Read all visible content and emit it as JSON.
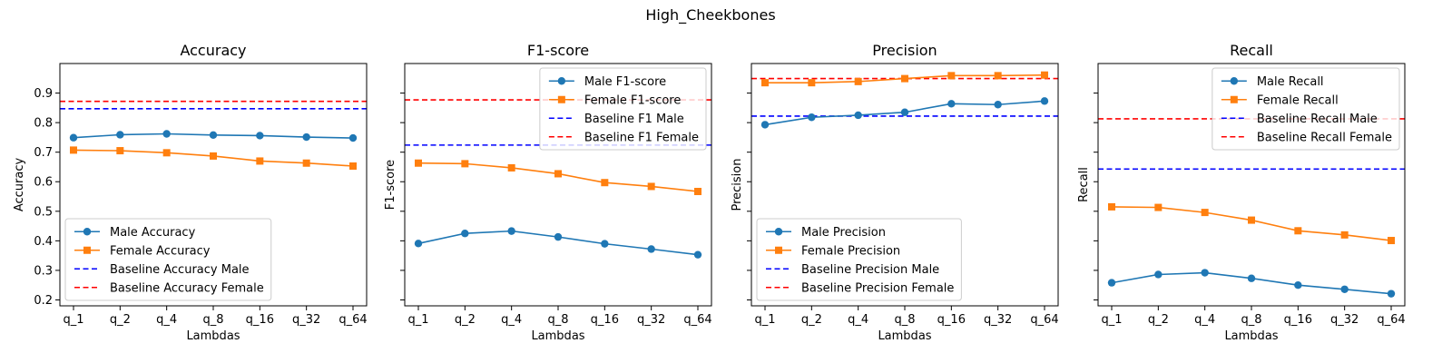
{
  "suptitle": "High_Cheekbones",
  "colors": {
    "male": "#1f77b4",
    "female": "#ff7f0e",
    "baseline_male": "#0000ff",
    "baseline_female": "#ff0000"
  },
  "chart_data": [
    {
      "type": "line",
      "title": "Accuracy",
      "xlabel": "Lambdas",
      "ylabel": "Accuracy",
      "categories": [
        "q_1",
        "q_2",
        "q_4",
        "q_8",
        "q_16",
        "q_32",
        "q_64"
      ],
      "ylim": [
        0.18,
        1.0
      ],
      "yticks": [
        "0.2",
        "0.3",
        "0.4",
        "0.5",
        "0.6",
        "0.7",
        "0.8",
        "0.9"
      ],
      "legend_loc": "lower-left",
      "series": [
        {
          "name": "Male Accuracy",
          "marker": "circle",
          "color": "#1f77b4",
          "values": [
            0.749,
            0.759,
            0.762,
            0.758,
            0.756,
            0.751,
            0.748
          ]
        },
        {
          "name": "Female Accuracy",
          "marker": "square",
          "color": "#ff7f0e",
          "values": [
            0.707,
            0.705,
            0.698,
            0.687,
            0.67,
            0.663,
            0.653
          ]
        }
      ],
      "baselines": [
        {
          "name": "Baseline Accuracy Male",
          "color": "#0000ff",
          "value": 0.847
        },
        {
          "name": "Baseline Accuracy Female",
          "color": "#ff0000",
          "value": 0.872
        }
      ]
    },
    {
      "type": "line",
      "title": "F1-score",
      "xlabel": "Lambdas",
      "ylabel": "F1-score",
      "categories": [
        "q_1",
        "q_2",
        "q_4",
        "q_8",
        "q_16",
        "q_32",
        "q_64"
      ],
      "ylim": [
        0.18,
        1.0
      ],
      "yticks": [],
      "legend_loc": "upper-right",
      "series": [
        {
          "name": "Male F1-score",
          "marker": "circle",
          "color": "#1f77b4",
          "values": [
            0.391,
            0.425,
            0.433,
            0.413,
            0.39,
            0.372,
            0.353
          ]
        },
        {
          "name": "Female F1-score",
          "marker": "square",
          "color": "#ff7f0e",
          "values": [
            0.663,
            0.661,
            0.647,
            0.627,
            0.597,
            0.584,
            0.567
          ]
        }
      ],
      "baselines": [
        {
          "name": "Baseline F1 Male",
          "color": "#0000ff",
          "value": 0.724
        },
        {
          "name": "Baseline F1 Female",
          "color": "#ff0000",
          "value": 0.877
        }
      ]
    },
    {
      "type": "line",
      "title": "Precision",
      "xlabel": "Lambdas",
      "ylabel": "Precision",
      "categories": [
        "q_1",
        "q_2",
        "q_4",
        "q_8",
        "q_16",
        "q_32",
        "q_64"
      ],
      "ylim": [
        0.18,
        1.0
      ],
      "yticks": [],
      "legend_loc": "lower-left",
      "series": [
        {
          "name": "Male Precision",
          "marker": "circle",
          "color": "#1f77b4",
          "values": [
            0.793,
            0.818,
            0.825,
            0.835,
            0.864,
            0.861,
            0.873
          ]
        },
        {
          "name": "Female Precision",
          "marker": "square",
          "color": "#ff7f0e",
          "values": [
            0.935,
            0.935,
            0.939,
            0.949,
            0.959,
            0.959,
            0.961
          ]
        }
      ],
      "baselines": [
        {
          "name": "Baseline Precision Male",
          "color": "#0000ff",
          "value": 0.822
        },
        {
          "name": "Baseline Precision Female",
          "color": "#ff0000",
          "value": 0.949
        }
      ]
    },
    {
      "type": "line",
      "title": "Recall",
      "xlabel": "Lambdas",
      "ylabel": "Recall",
      "categories": [
        "q_1",
        "q_2",
        "q_4",
        "q_8",
        "q_16",
        "q_32",
        "q_64"
      ],
      "ylim": [
        0.18,
        1.0
      ],
      "yticks": [],
      "legend_loc": "upper-right",
      "series": [
        {
          "name": "Male Recall",
          "marker": "circle",
          "color": "#1f77b4",
          "values": [
            0.258,
            0.286,
            0.292,
            0.273,
            0.25,
            0.236,
            0.221
          ]
        },
        {
          "name": "Female Recall",
          "marker": "square",
          "color": "#ff7f0e",
          "values": [
            0.515,
            0.513,
            0.496,
            0.47,
            0.434,
            0.42,
            0.401
          ]
        }
      ],
      "baselines": [
        {
          "name": "Baseline Recall Male",
          "color": "#0000ff",
          "value": 0.643
        },
        {
          "name": "Baseline Recall Female",
          "color": "#ff0000",
          "value": 0.813
        }
      ]
    }
  ]
}
